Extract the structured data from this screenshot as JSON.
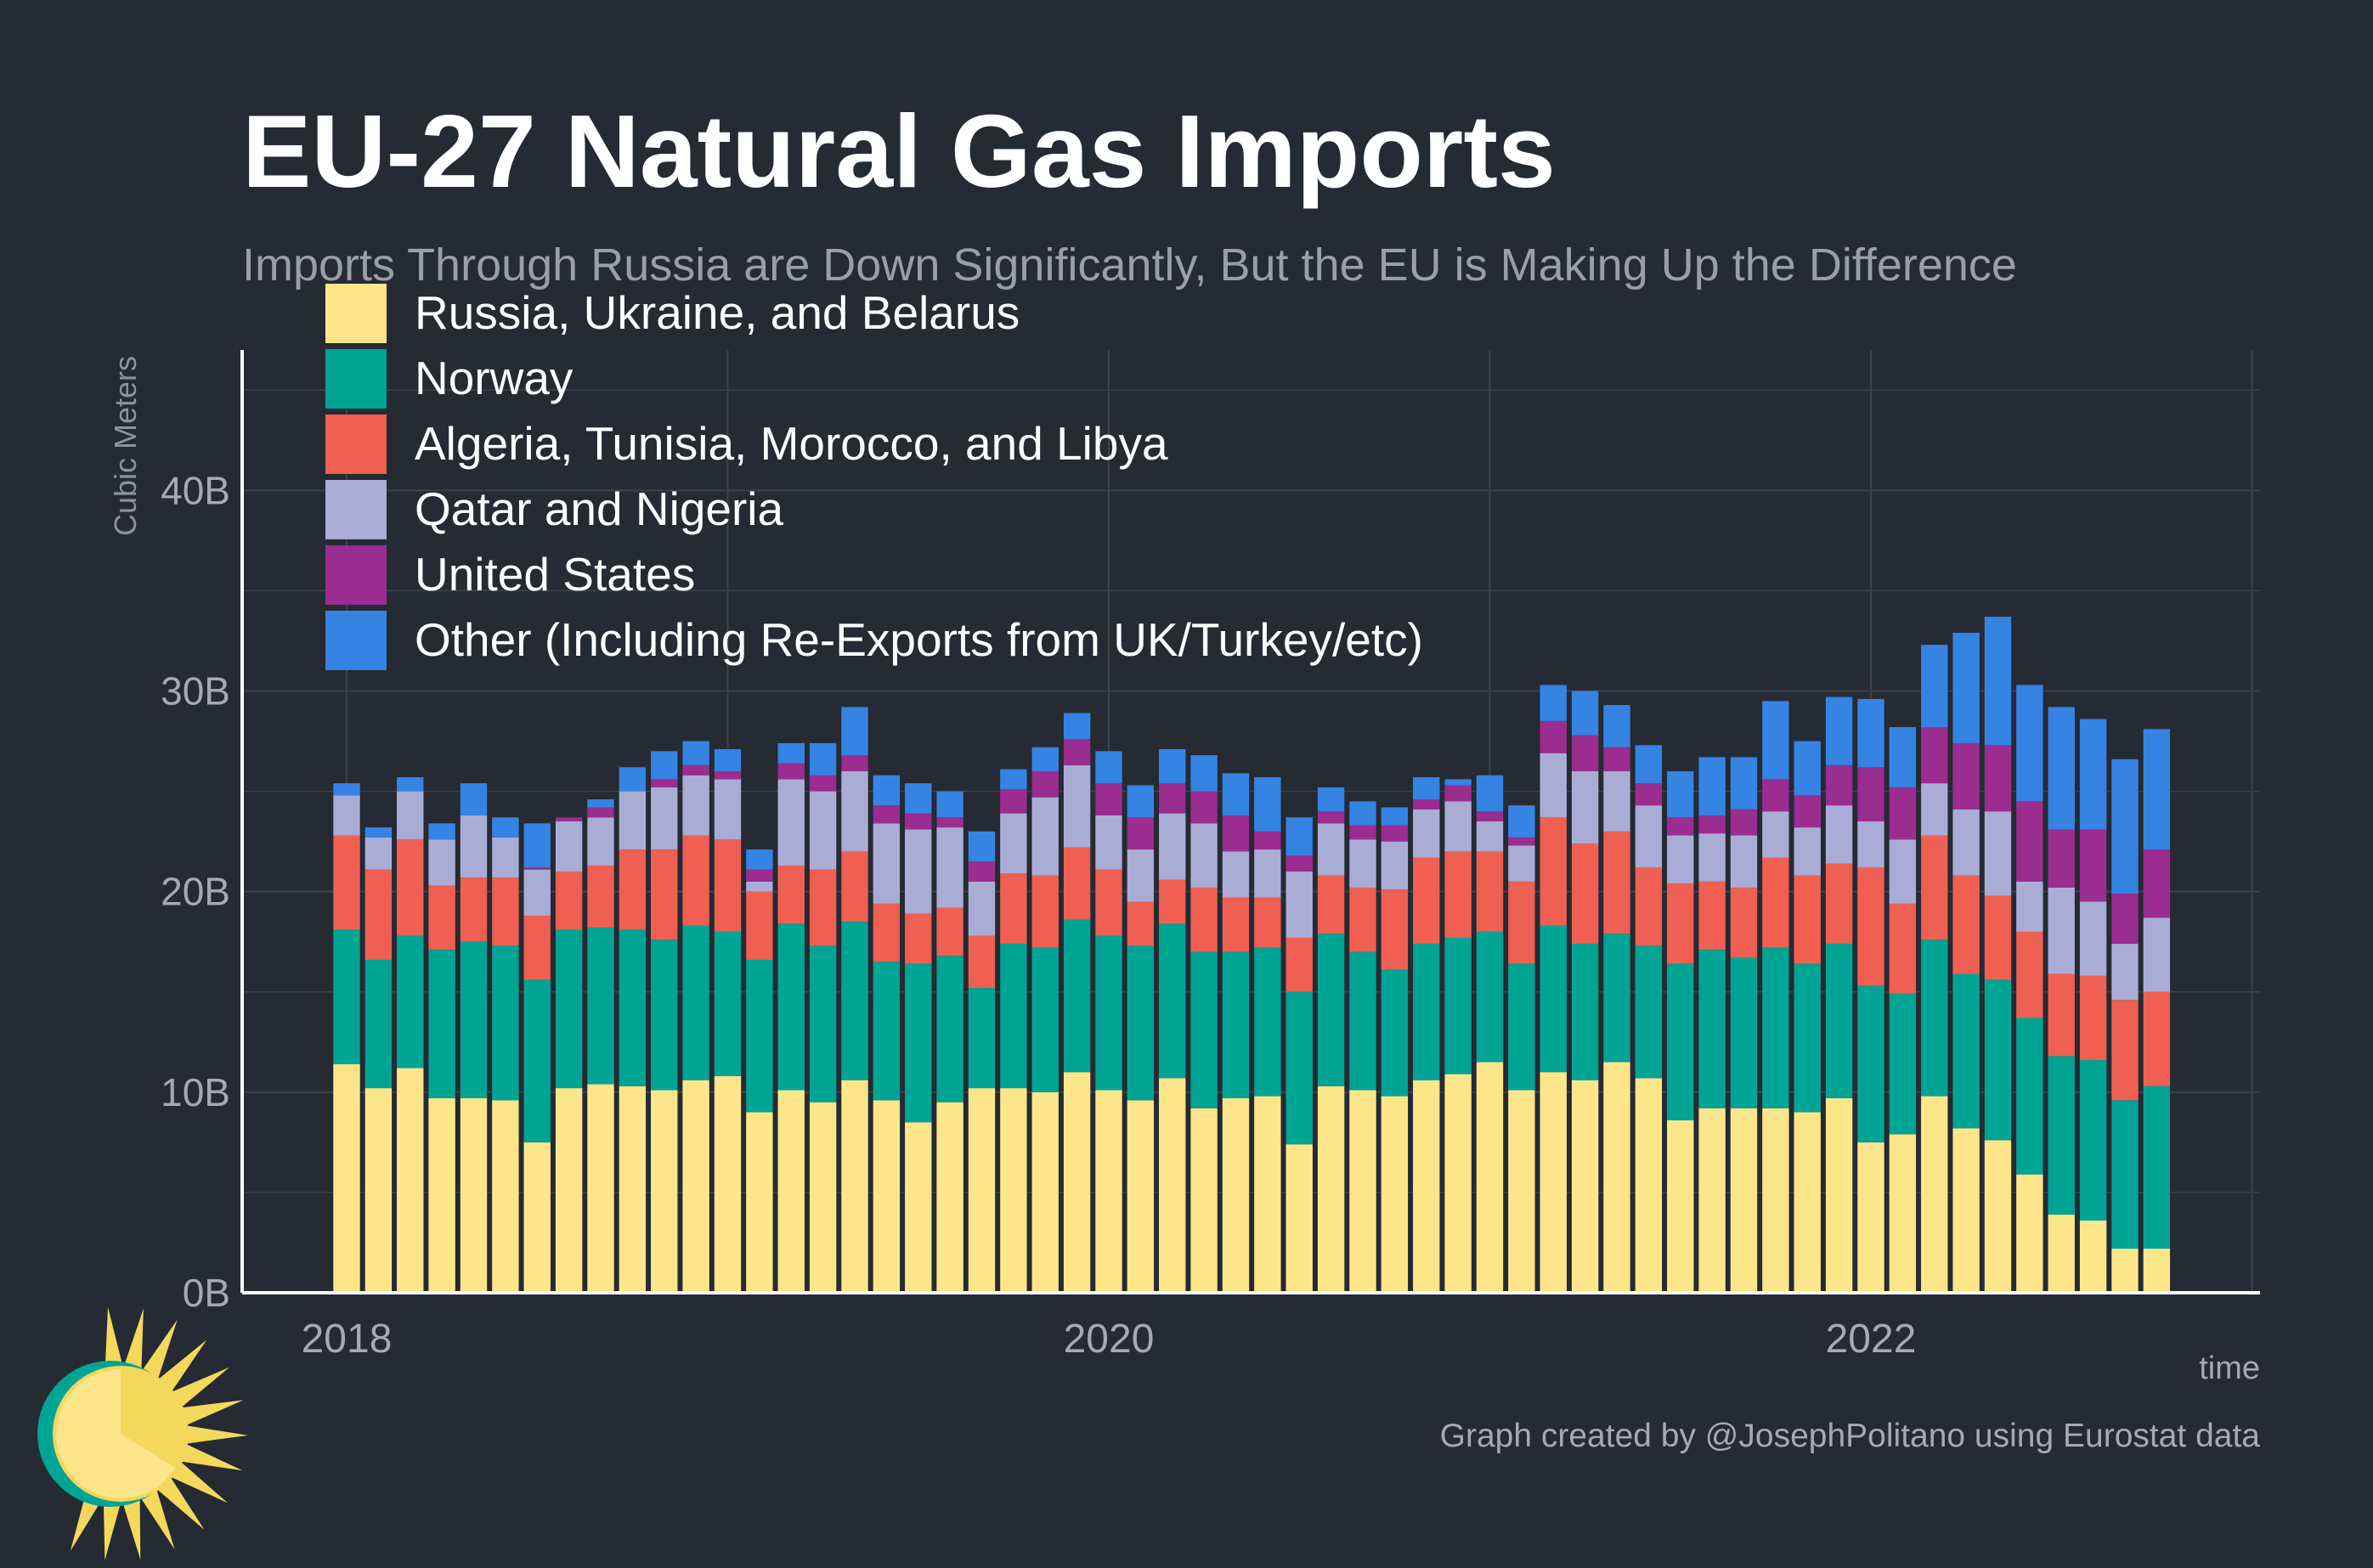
{
  "title": "EU-27 Natural Gas Imports",
  "subtitle": "Imports Through Russia are Down Significantly, But the EU is Making Up the Difference",
  "credit": "Graph created by @JosephPolitano using Eurostat data",
  "colors": {
    "background": "#252a33",
    "grid": "#3e434b",
    "axis": "#ffffff",
    "title": "#ffffff",
    "subtitle": "#9a9ea5",
    "tick": "#a6aab0",
    "legend_text": "#ffffff"
  },
  "chart_data": {
    "type": "bar",
    "stacked": true,
    "title": "EU-27 Natural Gas Imports",
    "subtitle": "Imports Through Russia are Down Significantly, But the EU is Making Up the Difference",
    "xlabel": "time",
    "ylabel": "Cubic Meters",
    "ylim": [
      0,
      47
    ],
    "yticks": [
      0,
      10,
      20,
      30,
      40
    ],
    "ytick_labels": [
      "0B",
      "10B",
      "20B",
      "30B",
      "40B"
    ],
    "x_start": "2018-01",
    "x_ticks": [
      "2018",
      "2020",
      "2022"
    ],
    "legend_position": "top-left",
    "grid": true,
    "categories": [
      "2018-01",
      "2018-02",
      "2018-03",
      "2018-04",
      "2018-05",
      "2018-06",
      "2018-07",
      "2018-08",
      "2018-09",
      "2018-10",
      "2018-11",
      "2018-12",
      "2019-01",
      "2019-02",
      "2019-03",
      "2019-04",
      "2019-05",
      "2019-06",
      "2019-07",
      "2019-08",
      "2019-09",
      "2019-10",
      "2019-11",
      "2019-12",
      "2020-01",
      "2020-02",
      "2020-03",
      "2020-04",
      "2020-05",
      "2020-06",
      "2020-07",
      "2020-08",
      "2020-09",
      "2020-10",
      "2020-11",
      "2020-12",
      "2021-01",
      "2021-02",
      "2021-03",
      "2021-04",
      "2021-05",
      "2021-06",
      "2021-07",
      "2021-08",
      "2021-09",
      "2021-10",
      "2021-11",
      "2021-12",
      "2022-01",
      "2022-02",
      "2022-03",
      "2022-04",
      "2022-05",
      "2022-06",
      "2022-07",
      "2022-08",
      "2022-09",
      "2022-10"
    ],
    "series": [
      {
        "name": "Russia, Ukraine, and Belarus",
        "color": "#fde68a",
        "values": [
          11.4,
          10.2,
          11.2,
          9.7,
          9.7,
          9.6,
          7.5,
          10.2,
          10.4,
          10.3,
          10.1,
          10.6,
          10.8,
          9.0,
          10.1,
          9.5,
          10.6,
          9.6,
          8.5,
          9.5,
          10.2,
          10.2,
          10.0,
          11.0,
          10.1,
          9.6,
          10.7,
          9.2,
          9.7,
          9.8,
          7.4,
          10.3,
          10.1,
          9.8,
          10.6,
          10.9,
          11.5,
          10.1,
          11.0,
          10.6,
          11.5,
          10.7,
          8.6,
          9.2,
          9.2,
          9.2,
          9.0,
          9.7,
          7.5,
          7.9,
          9.8,
          8.2,
          7.6,
          5.9,
          3.9,
          3.6,
          2.2,
          2.2
        ]
      },
      {
        "name": "Norway",
        "color": "#00a495",
        "values": [
          6.7,
          6.4,
          6.6,
          7.4,
          7.8,
          7.7,
          8.1,
          7.9,
          7.8,
          7.8,
          7.5,
          7.7,
          7.2,
          7.6,
          8.3,
          7.8,
          7.9,
          6.9,
          7.9,
          7.3,
          5.0,
          7.2,
          7.2,
          7.6,
          7.7,
          7.7,
          7.7,
          7.8,
          7.3,
          7.4,
          7.6,
          7.6,
          6.9,
          6.3,
          6.8,
          6.8,
          6.5,
          6.3,
          7.3,
          6.8,
          6.4,
          6.6,
          7.8,
          7.9,
          7.5,
          8.0,
          7.4,
          7.7,
          7.8,
          7.0,
          7.8,
          7.7,
          8.0,
          7.8,
          7.9,
          8.0,
          7.4,
          8.1
        ]
      },
      {
        "name": "Algeria, Tunisia, Morocco, and Libya",
        "color": "#ef5f52",
        "values": [
          4.7,
          4.5,
          4.8,
          3.2,
          3.2,
          3.4,
          3.2,
          2.9,
          3.1,
          4.0,
          4.5,
          4.5,
          4.6,
          3.4,
          2.9,
          3.8,
          3.5,
          2.9,
          2.5,
          2.4,
          2.6,
          3.5,
          3.6,
          3.6,
          3.3,
          2.2,
          2.2,
          3.2,
          2.7,
          2.5,
          2.7,
          2.9,
          3.2,
          4.0,
          4.3,
          4.3,
          4.0,
          4.1,
          5.4,
          5.0,
          5.1,
          3.9,
          4.0,
          3.4,
          3.5,
          4.5,
          4.4,
          4.0,
          5.9,
          4.5,
          5.2,
          4.9,
          4.2,
          4.3,
          4.1,
          4.2,
          5.0,
          4.7
        ]
      },
      {
        "name": "Qatar and Nigeria",
        "color": "#a9add6",
        "values": [
          2.0,
          1.6,
          2.4,
          2.3,
          3.1,
          2.0,
          2.3,
          2.5,
          2.4,
          2.9,
          3.1,
          3.0,
          3.0,
          0.5,
          4.3,
          3.9,
          4.0,
          4.0,
          4.2,
          4.0,
          2.7,
          3.0,
          3.9,
          4.1,
          2.7,
          2.6,
          3.3,
          3.2,
          2.3,
          2.4,
          3.3,
          2.6,
          2.4,
          2.4,
          2.4,
          2.5,
          1.5,
          1.8,
          3.2,
          3.6,
          3.0,
          3.1,
          2.4,
          2.4,
          2.6,
          2.3,
          2.4,
          2.9,
          2.3,
          3.2,
          2.6,
          3.3,
          4.2,
          2.5,
          4.3,
          3.7,
          2.8,
          3.7
        ]
      },
      {
        "name": "United States",
        "color": "#9b2c90",
        "values": [
          0.0,
          0.0,
          0.0,
          0.0,
          0.0,
          0.0,
          0.1,
          0.2,
          0.5,
          0.0,
          0.4,
          0.5,
          0.4,
          0.6,
          0.8,
          0.8,
          0.8,
          0.9,
          0.8,
          0.5,
          1.0,
          1.2,
          1.3,
          1.3,
          1.6,
          1.6,
          1.5,
          1.6,
          1.8,
          0.9,
          0.8,
          0.6,
          0.7,
          0.8,
          0.5,
          0.8,
          0.5,
          0.4,
          1.6,
          1.8,
          1.2,
          1.1,
          0.9,
          0.9,
          1.3,
          1.6,
          1.6,
          2.0,
          2.7,
          2.6,
          2.8,
          3.3,
          3.3,
          4.0,
          2.9,
          3.6,
          2.5,
          3.4
        ]
      },
      {
        "name": "Other (Including Re-Exports from UK/Turkey/etc)",
        "color": "#3584e4",
        "values": [
          0.6,
          0.5,
          0.7,
          0.8,
          1.6,
          1.0,
          2.2,
          0.0,
          0.4,
          1.2,
          1.4,
          1.2,
          1.1,
          1.0,
          1.0,
          1.6,
          2.4,
          1.5,
          1.5,
          1.3,
          1.5,
          1.0,
          1.2,
          1.3,
          1.6,
          1.6,
          1.7,
          1.8,
          2.1,
          2.7,
          1.9,
          1.2,
          1.2,
          0.9,
          1.1,
          0.3,
          1.8,
          1.6,
          1.8,
          2.2,
          2.1,
          1.9,
          2.3,
          2.9,
          2.6,
          3.9,
          2.7,
          3.4,
          3.4,
          3.0,
          4.1,
          5.5,
          6.4,
          5.8,
          6.1,
          5.5,
          6.7,
          6.0
        ]
      }
    ]
  }
}
